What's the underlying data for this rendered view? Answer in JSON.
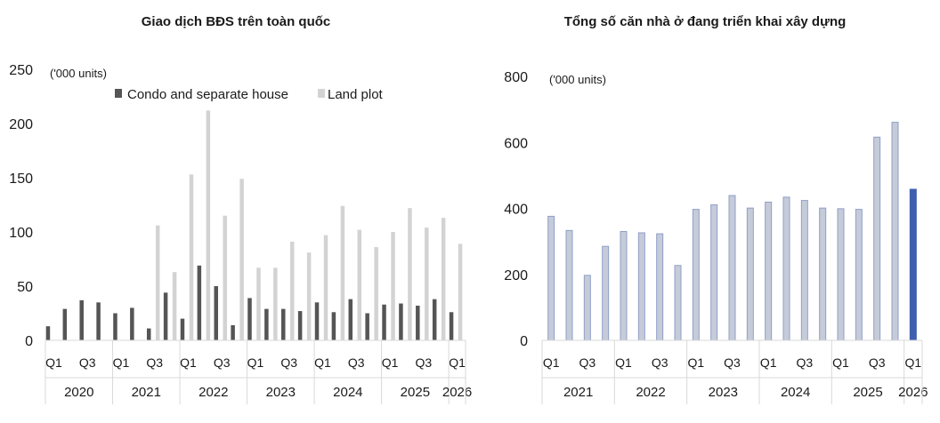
{
  "chart_data": [
    {
      "type": "bar",
      "title": "Giao dịch BĐS trên toàn quốc",
      "unit_label": "('000 units)",
      "ylim": [
        0,
        250
      ],
      "yticks": [
        0,
        50,
        100,
        150,
        200,
        250
      ],
      "grid": false,
      "legend_position": "top",
      "colors": {
        "Condo and separate house": "#555555",
        "Land plot": "#d3d3d3"
      },
      "quarter_labels": [
        "Q1",
        "",
        "Q3",
        "",
        "Q1",
        "",
        "Q3",
        "",
        "Q1",
        "",
        "Q3",
        "",
        "Q1",
        "",
        "Q3",
        "",
        "Q1",
        "",
        "Q3",
        "",
        "Q1",
        "",
        "Q3",
        "",
        "Q1"
      ],
      "years": [
        {
          "label": "2020",
          "quarters": 4
        },
        {
          "label": "2021",
          "quarters": 4
        },
        {
          "label": "2022",
          "quarters": 4
        },
        {
          "label": "2023",
          "quarters": 4
        },
        {
          "label": "2024",
          "quarters": 4
        },
        {
          "label": "2025",
          "quarters": 4
        },
        {
          "label": "2026",
          "quarters": 1
        }
      ],
      "series": [
        {
          "name": "Condo and separate house",
          "values": [
            13,
            29,
            37,
            35,
            25,
            30,
            11,
            44,
            20,
            69,
            50,
            14,
            39,
            29,
            29,
            27,
            35,
            26,
            38,
            25,
            33,
            34,
            32,
            38,
            26
          ]
        },
        {
          "name": "Land plot",
          "values": [
            null,
            null,
            null,
            null,
            null,
            null,
            106,
            63,
            153,
            212,
            115,
            149,
            67,
            67,
            91,
            81,
            97,
            124,
            102,
            86,
            100,
            122,
            104,
            113,
            89
          ]
        }
      ]
    },
    {
      "type": "bar",
      "title": "Tổng số căn nhà ở đang triển khai xây dựng",
      "unit_label": "('000 units)",
      "ylim": [
        0,
        800
      ],
      "yticks": [
        0,
        200,
        400,
        600,
        800
      ],
      "grid": false,
      "colors": {
        "regular": "#c5cbd9",
        "regular_edge": "#8f9fc6",
        "highlight": "#3f5fae"
      },
      "highlight_last": true,
      "quarter_labels": [
        "Q1",
        "",
        "Q3",
        "",
        "Q1",
        "",
        "Q3",
        "",
        "Q1",
        "",
        "Q3",
        "",
        "Q1",
        "",
        "Q3",
        "",
        "Q1",
        "",
        "Q3",
        "",
        "Q1"
      ],
      "years": [
        {
          "label": "2021",
          "quarters": 4
        },
        {
          "label": "2022",
          "quarters": 4
        },
        {
          "label": "2023",
          "quarters": 4
        },
        {
          "label": "2024",
          "quarters": 4
        },
        {
          "label": "2025",
          "quarters": 4
        },
        {
          "label": "2026",
          "quarters": 1
        }
      ],
      "values": [
        376,
        333,
        197,
        285,
        330,
        326,
        323,
        227,
        397,
        411,
        439,
        401,
        419,
        434,
        424,
        401,
        399,
        397,
        616,
        661,
        458
      ]
    }
  ]
}
